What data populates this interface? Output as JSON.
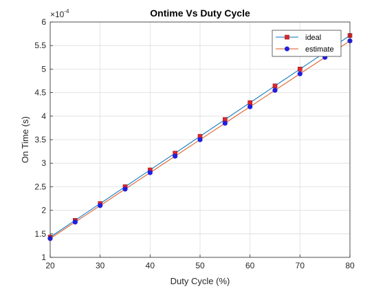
{
  "chart_data": {
    "type": "line",
    "title": "Ontime Vs Duty Cycle",
    "xlabel": "Duty Cycle (%)",
    "ylabel": "On Time (s)",
    "y_exponent_label": "×10",
    "y_exponent_power": "-4",
    "y_scale": 0.0001,
    "xlim": [
      20,
      80
    ],
    "ylim": [
      1,
      6
    ],
    "xticks": [
      20,
      30,
      40,
      50,
      60,
      70,
      80
    ],
    "yticks": [
      1,
      1.5,
      2,
      2.5,
      3,
      3.5,
      4,
      4.5,
      5,
      5.5,
      6
    ],
    "grid": true,
    "legend_position": "top-right",
    "x": [
      20,
      25,
      30,
      35,
      40,
      45,
      50,
      55,
      60,
      65,
      70,
      75,
      80
    ],
    "series": [
      {
        "name": "ideal",
        "color": "#0072bd",
        "marker": "square",
        "marker_fill": "#e0262f",
        "values": [
          1.43,
          1.786,
          2.143,
          2.5,
          2.857,
          3.214,
          3.571,
          3.929,
          4.286,
          4.643,
          5.0,
          5.357,
          5.714
        ]
      },
      {
        "name": "estimate",
        "color": "#d95319",
        "marker": "circle",
        "marker_fill": "#1f1fe0",
        "values": [
          1.4,
          1.75,
          2.1,
          2.45,
          2.8,
          3.15,
          3.5,
          3.85,
          4.2,
          4.55,
          4.9,
          5.25,
          5.6
        ]
      }
    ]
  }
}
